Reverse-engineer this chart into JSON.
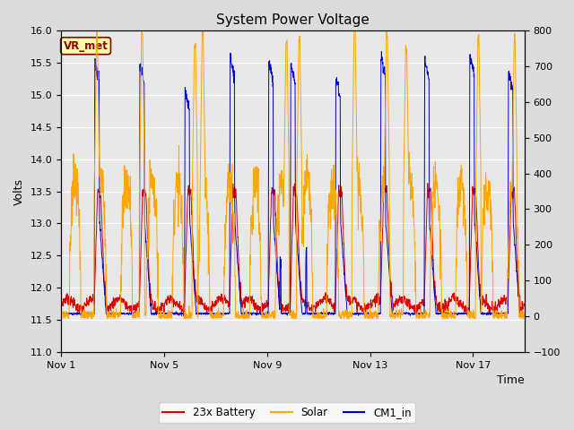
{
  "title": "System Power Voltage",
  "xlabel": "Time",
  "ylabel": "Volts",
  "ylim_left": [
    11.0,
    16.0
  ],
  "ylim_right": [
    -100,
    800
  ],
  "yticks_left": [
    11.0,
    11.5,
    12.0,
    12.5,
    13.0,
    13.5,
    14.0,
    14.5,
    15.0,
    15.5,
    16.0
  ],
  "yticks_right": [
    -100,
    0,
    100,
    200,
    300,
    400,
    500,
    600,
    700,
    800
  ],
  "xtick_positions": [
    0,
    4,
    8,
    12,
    16
  ],
  "xtick_labels": [
    "Nov 1",
    "Nov 5",
    "Nov 9",
    "Nov 13",
    "Nov 17"
  ],
  "fig_bg": "#dcdcdc",
  "plot_bg": "#e8e8e8",
  "grid_color": "#ffffff",
  "battery_color": "#dd0000",
  "solar_color": "#ffa500",
  "cm1_color": "#0000cc",
  "vr_met_bg": "#ffffaa",
  "vr_met_border": "#8b0000",
  "vr_met_text": "#8b0000",
  "legend_battery": "23x Battery",
  "legend_solar": "Solar",
  "legend_cm1": "CM1_in",
  "vr_met_label": "VR_met",
  "num_days": 18,
  "xlim": [
    0,
    18
  ],
  "title_fontsize": 11,
  "axis_fontsize": 9,
  "tick_fontsize": 8
}
